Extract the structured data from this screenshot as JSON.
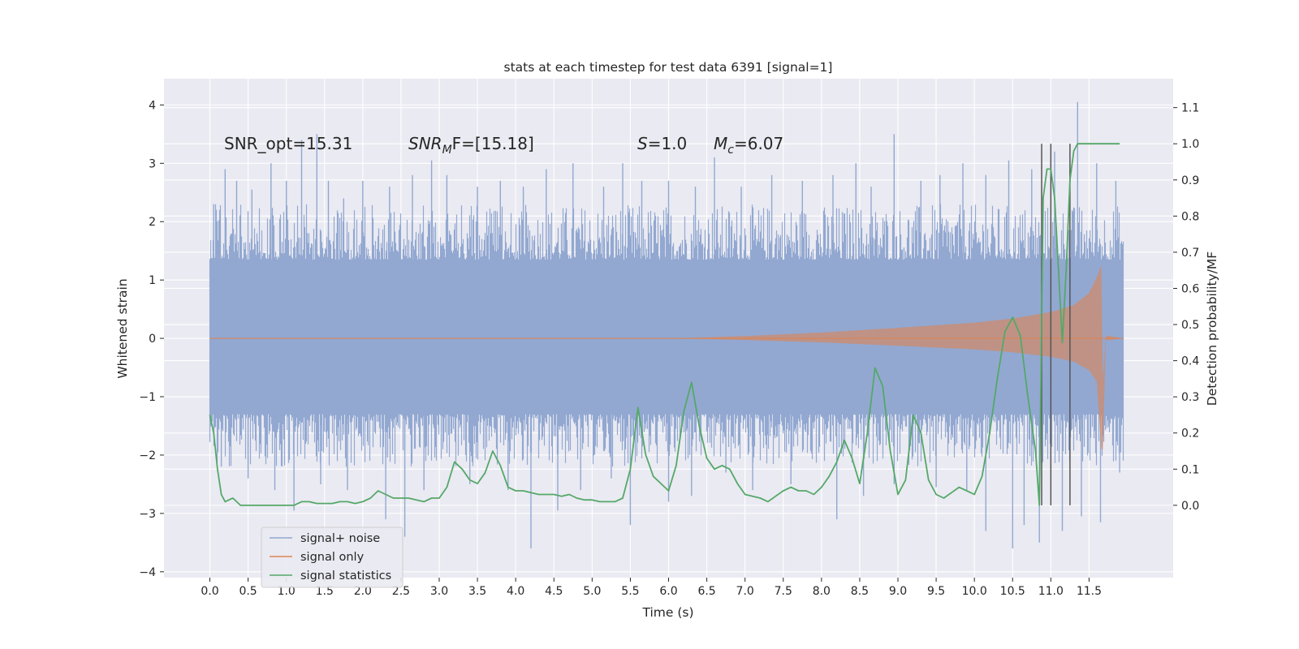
{
  "chart_data": {
    "type": "line",
    "title": "stats at each timestep for test data 6391 [signal=1]",
    "xlabel": "Time (s)",
    "ylabel": "Whitened strain",
    "y2label": "Detection probability/MF",
    "xlim": [
      -0.6,
      12.6
    ],
    "ylim": [
      -4.1,
      4.45
    ],
    "y2lim": [
      -0.2,
      1.18
    ],
    "x_ticks": [
      "0.0",
      "0.5",
      "1.0",
      "1.5",
      "2.0",
      "2.5",
      "3.0",
      "3.5",
      "4.0",
      "4.5",
      "5.0",
      "5.5",
      "6.0",
      "6.5",
      "7.0",
      "7.5",
      "8.0",
      "8.5",
      "9.0",
      "9.5",
      "10.0",
      "10.5",
      "11.0",
      "11.5"
    ],
    "y_ticks": [
      "4",
      "3",
      "2",
      "1",
      "0",
      "−1",
      "−2",
      "−3",
      "−4"
    ],
    "y2_ticks": [
      "1.1",
      "1.0",
      "0.9",
      "0.8",
      "0.7",
      "0.6",
      "0.5",
      "0.4",
      "0.3",
      "0.2",
      "0.1",
      "0.0"
    ],
    "grid": true,
    "legend_position": "lower-left",
    "annotations": {
      "snr_opt": "SNR_opt=15.31",
      "snr_mf_base": "SNR",
      "snr_mf_sub": "M",
      "snr_mf_rest": "F=[15.18]",
      "s_sym": "S",
      "s_val": "=1.0",
      "mc_sym": "M",
      "mc_sub": "c",
      "mc_val": "=6.07"
    },
    "series": [
      {
        "name": "signal+ noise",
        "color": "#92a8d1",
        "duration": 11.95,
        "core_band": [
          -1.3,
          1.35
        ],
        "typical_extent": [
          -2.2,
          2.3
        ],
        "peaks_high": [
          [
            0.05,
            2.3
          ],
          [
            0.2,
            2.9
          ],
          [
            0.35,
            2.7
          ],
          [
            0.55,
            2.55
          ],
          [
            0.8,
            3.0
          ],
          [
            1.0,
            2.7
          ],
          [
            1.2,
            3.4
          ],
          [
            1.4,
            3.5
          ],
          [
            1.55,
            2.7
          ],
          [
            1.75,
            2.4
          ],
          [
            2.0,
            2.7
          ],
          [
            2.35,
            2.6
          ],
          [
            2.65,
            2.8
          ],
          [
            2.9,
            3.05
          ],
          [
            3.1,
            2.8
          ],
          [
            3.5,
            2.6
          ],
          [
            3.8,
            2.7
          ],
          [
            4.1,
            2.6
          ],
          [
            4.4,
            2.9
          ],
          [
            4.75,
            3.0
          ],
          [
            5.15,
            2.6
          ],
          [
            5.4,
            3.0
          ],
          [
            5.65,
            2.7
          ],
          [
            6.0,
            2.7
          ],
          [
            6.35,
            2.6
          ],
          [
            6.6,
            3.1
          ],
          [
            6.95,
            2.6
          ],
          [
            7.35,
            2.8
          ],
          [
            7.75,
            2.7
          ],
          [
            8.15,
            2.8
          ],
          [
            8.45,
            3.0
          ],
          [
            8.65,
            2.6
          ],
          [
            8.95,
            3.5
          ],
          [
            9.3,
            2.7
          ],
          [
            9.55,
            2.8
          ],
          [
            9.85,
            3.0
          ],
          [
            10.15,
            2.8
          ],
          [
            10.45,
            3.05
          ],
          [
            10.75,
            2.9
          ],
          [
            11.05,
            3.2
          ],
          [
            11.35,
            4.05
          ],
          [
            11.6,
            3.0
          ],
          [
            11.85,
            2.7
          ]
        ],
        "peaks_low": [
          [
            0.15,
            -2.2
          ],
          [
            0.5,
            -2.4
          ],
          [
            0.85,
            -2.6
          ],
          [
            1.1,
            -2.95
          ],
          [
            1.45,
            -2.5
          ],
          [
            1.8,
            -2.6
          ],
          [
            2.3,
            -3.1
          ],
          [
            2.55,
            -3.4
          ],
          [
            2.8,
            -2.6
          ],
          [
            3.4,
            -2.5
          ],
          [
            3.9,
            -2.6
          ],
          [
            4.2,
            -3.6
          ],
          [
            4.55,
            -2.95
          ],
          [
            4.85,
            -2.6
          ],
          [
            5.25,
            -2.4
          ],
          [
            5.5,
            -3.2
          ],
          [
            6.0,
            -2.8
          ],
          [
            6.3,
            -2.7
          ],
          [
            6.75,
            -2.3
          ],
          [
            7.1,
            -2.6
          ],
          [
            7.6,
            -2.5
          ],
          [
            8.2,
            -3.1
          ],
          [
            8.55,
            -2.7
          ],
          [
            8.95,
            -2.5
          ],
          [
            9.5,
            -2.55
          ],
          [
            9.9,
            -2.6
          ],
          [
            10.15,
            -3.3
          ],
          [
            10.5,
            -3.6
          ],
          [
            10.65,
            -3.2
          ],
          [
            10.85,
            -3.5
          ],
          [
            11.15,
            -3.3
          ],
          [
            11.4,
            -3.05
          ],
          [
            11.65,
            -3.15
          ],
          [
            11.9,
            -2.3
          ]
        ]
      },
      {
        "name": "signal only",
        "color": "#dd8452",
        "start": 6.1,
        "peak_time": 11.66,
        "end": 11.95,
        "envelope": [
          [
            6.1,
            0.0
          ],
          [
            7.0,
            0.04
          ],
          [
            8.0,
            0.1
          ],
          [
            9.0,
            0.18
          ],
          [
            10.0,
            0.27
          ],
          [
            10.5,
            0.34
          ],
          [
            11.0,
            0.45
          ],
          [
            11.3,
            0.57
          ],
          [
            11.5,
            0.78
          ],
          [
            11.6,
            1.05
          ],
          [
            11.66,
            1.25
          ],
          [
            11.68,
            -0.7
          ],
          [
            11.72,
            0.05
          ],
          [
            11.95,
            0.0
          ]
        ],
        "negative_envelope_scale": 0.7,
        "ring_down_low": -1.9
      },
      {
        "name": "signal statistics",
        "color": "#55a868",
        "x": [
          0.0,
          0.05,
          0.1,
          0.15,
          0.2,
          0.25,
          0.3,
          0.35,
          0.4,
          0.5,
          0.6,
          0.7,
          0.8,
          0.9,
          1.0,
          1.1,
          1.2,
          1.3,
          1.4,
          1.5,
          1.6,
          1.7,
          1.8,
          1.9,
          2.0,
          2.1,
          2.2,
          2.3,
          2.4,
          2.5,
          2.6,
          2.7,
          2.8,
          2.9,
          3.0,
          3.1,
          3.2,
          3.3,
          3.4,
          3.5,
          3.6,
          3.7,
          3.8,
          3.9,
          4.0,
          4.1,
          4.2,
          4.3,
          4.4,
          4.5,
          4.6,
          4.7,
          4.8,
          4.9,
          5.0,
          5.1,
          5.2,
          5.3,
          5.4,
          5.5,
          5.6,
          5.7,
          5.8,
          5.9,
          6.0,
          6.1,
          6.2,
          6.3,
          6.4,
          6.5,
          6.6,
          6.7,
          6.8,
          6.9,
          7.0,
          7.1,
          7.2,
          7.3,
          7.4,
          7.5,
          7.6,
          7.7,
          7.8,
          7.9,
          8.0,
          8.1,
          8.2,
          8.3,
          8.4,
          8.5,
          8.6,
          8.7,
          8.8,
          8.9,
          9.0,
          9.1,
          9.2,
          9.3,
          9.4,
          9.5,
          9.6,
          9.7,
          9.8,
          9.9,
          10.0,
          10.1,
          10.2,
          10.3,
          10.4,
          10.5,
          10.6,
          10.7,
          10.8,
          10.85,
          10.9,
          10.95,
          11.0,
          11.05,
          11.1,
          11.15,
          11.2,
          11.25,
          11.3,
          11.35,
          11.4,
          11.5,
          11.6,
          11.7,
          11.8,
          11.9
        ],
        "values": [
          0.25,
          0.2,
          0.1,
          0.03,
          0.01,
          0.015,
          0.02,
          0.01,
          0.0,
          0.0,
          0.0,
          0.0,
          0.0,
          0.0,
          0.0,
          0.0,
          0.01,
          0.01,
          0.005,
          0.005,
          0.005,
          0.01,
          0.01,
          0.005,
          0.01,
          0.02,
          0.04,
          0.03,
          0.02,
          0.02,
          0.02,
          0.015,
          0.01,
          0.02,
          0.02,
          0.05,
          0.12,
          0.1,
          0.07,
          0.06,
          0.09,
          0.15,
          0.11,
          0.05,
          0.04,
          0.04,
          0.035,
          0.03,
          0.03,
          0.03,
          0.025,
          0.03,
          0.02,
          0.015,
          0.015,
          0.01,
          0.01,
          0.01,
          0.02,
          0.1,
          0.27,
          0.14,
          0.08,
          0.06,
          0.04,
          0.11,
          0.26,
          0.34,
          0.22,
          0.13,
          0.1,
          0.11,
          0.1,
          0.06,
          0.03,
          0.025,
          0.02,
          0.01,
          0.025,
          0.04,
          0.05,
          0.04,
          0.04,
          0.03,
          0.05,
          0.08,
          0.12,
          0.18,
          0.13,
          0.06,
          0.2,
          0.38,
          0.33,
          0.15,
          0.03,
          0.07,
          0.25,
          0.2,
          0.07,
          0.03,
          0.02,
          0.035,
          0.05,
          0.04,
          0.03,
          0.08,
          0.2,
          0.35,
          0.48,
          0.52,
          0.47,
          0.3,
          0.15,
          0.0,
          0.85,
          0.93,
          0.93,
          0.85,
          0.65,
          0.45,
          0.65,
          0.9,
          0.98,
          1.0,
          1.0,
          1.0,
          1.0,
          1.0,
          1.0,
          1.0
        ]
      }
    ],
    "vertical_lines_x": [
      10.88,
      11.0,
      11.25
    ],
    "vertical_lines_range": [
      -0.0,
      1.0
    ],
    "vertical_lines_color": "#555555"
  }
}
